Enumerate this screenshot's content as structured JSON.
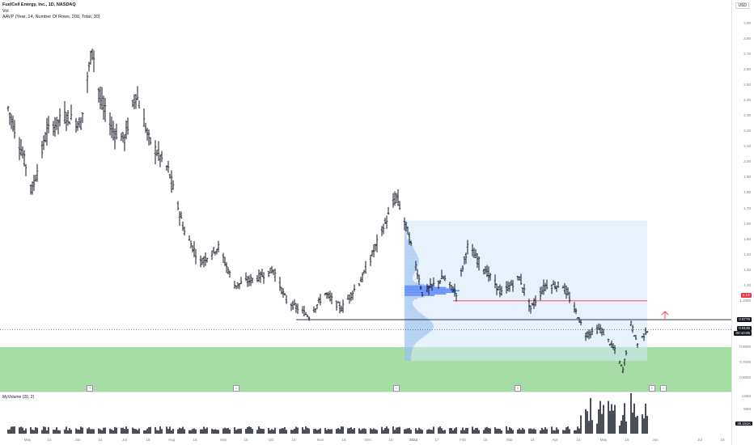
{
  "legend": {
    "title": "FuelCell Energy, Inc., 1D, NASDAQ",
    "line2": "Vol",
    "line3": "AAVP (Year, 14, Number Of Rows, 200, Total, 30)"
  },
  "currency": "USD",
  "volume_legend": "MyVolume (20, 2)",
  "price_tags": {
    "red_level": "1.1X",
    "black_level": "0.9779",
    "last_price": "0.9135",
    "countdown": "00:10:05"
  },
  "volume_tags": {
    "volume_value": "35.151K"
  },
  "colors": {
    "candle": "#131722",
    "profile_fill": "#d6e7fb",
    "profile_bar": "#4a90e2",
    "value_area": "#2962ff",
    "support_zone": "#8fd48f",
    "red_line": "#f23645",
    "black_line": "#131722"
  },
  "chart_data": {
    "type": "ohlc",
    "y_ticks": [
      "2.90",
      "2.80",
      "2.70",
      "2.60",
      "2.50",
      "2.40",
      "2.30",
      "2.20",
      "2.10",
      "2.00",
      "1.90",
      "1.80",
      "1.70",
      "1.60",
      "1.50",
      "1.40",
      "1.30",
      "1.20",
      "1.1000",
      "0.8000",
      "0.7000",
      "0.6000"
    ],
    "x_ticks": [
      "May",
      "15",
      "Jun",
      "15",
      "Jul",
      "18",
      "Aug",
      "15",
      "Sep",
      "15",
      "Oct",
      "16",
      "Nov",
      "15",
      "Dec",
      "15",
      "2024",
      "17",
      "Feb",
      "15",
      "Mar",
      "15",
      "Apr",
      "15",
      "May",
      "15",
      "Jun",
      "Jul",
      "16"
    ],
    "volume_ticks": [
      "120M",
      "80M"
    ],
    "anchor_points": [
      {
        "date": "2023-05-01",
        "close": 2.35
      },
      {
        "date": "2023-05-10",
        "close": 2.05
      },
      {
        "date": "2023-05-16",
        "close": 1.82
      },
      {
        "date": "2023-05-25",
        "close": 2.2
      },
      {
        "date": "2023-06-05",
        "close": 2.3
      },
      {
        "date": "2023-06-15",
        "close": 2.25
      },
      {
        "date": "2023-06-22",
        "close": 2.75
      },
      {
        "date": "2023-06-27",
        "close": 2.4
      },
      {
        "date": "2023-07-05",
        "close": 2.2
      },
      {
        "date": "2023-07-12",
        "close": 2.15
      },
      {
        "date": "2023-07-19",
        "close": 2.45
      },
      {
        "date": "2023-07-27",
        "close": 2.15
      },
      {
        "date": "2023-08-08",
        "close": 1.95
      },
      {
        "date": "2023-08-18",
        "close": 1.55
      },
      {
        "date": "2023-08-28",
        "close": 1.35
      },
      {
        "date": "2023-09-08",
        "close": 1.45
      },
      {
        "date": "2023-09-18",
        "close": 1.2
      },
      {
        "date": "2023-10-02",
        "close": 1.25
      },
      {
        "date": "2023-10-12",
        "close": 1.3
      },
      {
        "date": "2023-10-20",
        "close": 1.1
      },
      {
        "date": "2023-11-03",
        "close": 1.0
      },
      {
        "date": "2023-11-13",
        "close": 1.15
      },
      {
        "date": "2023-11-23",
        "close": 1.05
      },
      {
        "date": "2023-12-06",
        "close": 1.25
      },
      {
        "date": "2023-12-14",
        "close": 1.45
      },
      {
        "date": "2023-12-27",
        "close": 1.78
      },
      {
        "date": "2024-01-03",
        "close": 1.55
      },
      {
        "date": "2024-01-12",
        "close": 1.15
      },
      {
        "date": "2024-01-25",
        "close": 1.25
      },
      {
        "date": "2024-02-02",
        "close": 1.15
      },
      {
        "date": "2024-02-09",
        "close": 1.45
      },
      {
        "date": "2024-02-20",
        "close": 1.3
      },
      {
        "date": "2024-03-01",
        "close": 1.15
      },
      {
        "date": "2024-03-12",
        "close": 1.25
      },
      {
        "date": "2024-03-19",
        "close": 1.05
      },
      {
        "date": "2024-03-28",
        "close": 1.2
      },
      {
        "date": "2024-04-08",
        "close": 1.2
      },
      {
        "date": "2024-04-15",
        "close": 1.05
      },
      {
        "date": "2024-04-22",
        "close": 0.88
      },
      {
        "date": "2024-05-01",
        "close": 0.92
      },
      {
        "date": "2024-05-10",
        "close": 0.78
      },
      {
        "date": "2024-05-15",
        "close": 0.65
      },
      {
        "date": "2024-05-20",
        "close": 0.95
      },
      {
        "date": "2024-05-24",
        "close": 0.82
      },
      {
        "date": "2024-05-30",
        "close": 0.91
      }
    ],
    "levels": {
      "red": 1.1,
      "black": 0.9779
    },
    "zone": [
      0.6,
      0.8
    ],
    "volume_profile_range": [
      0.71,
      1.62
    ]
  }
}
